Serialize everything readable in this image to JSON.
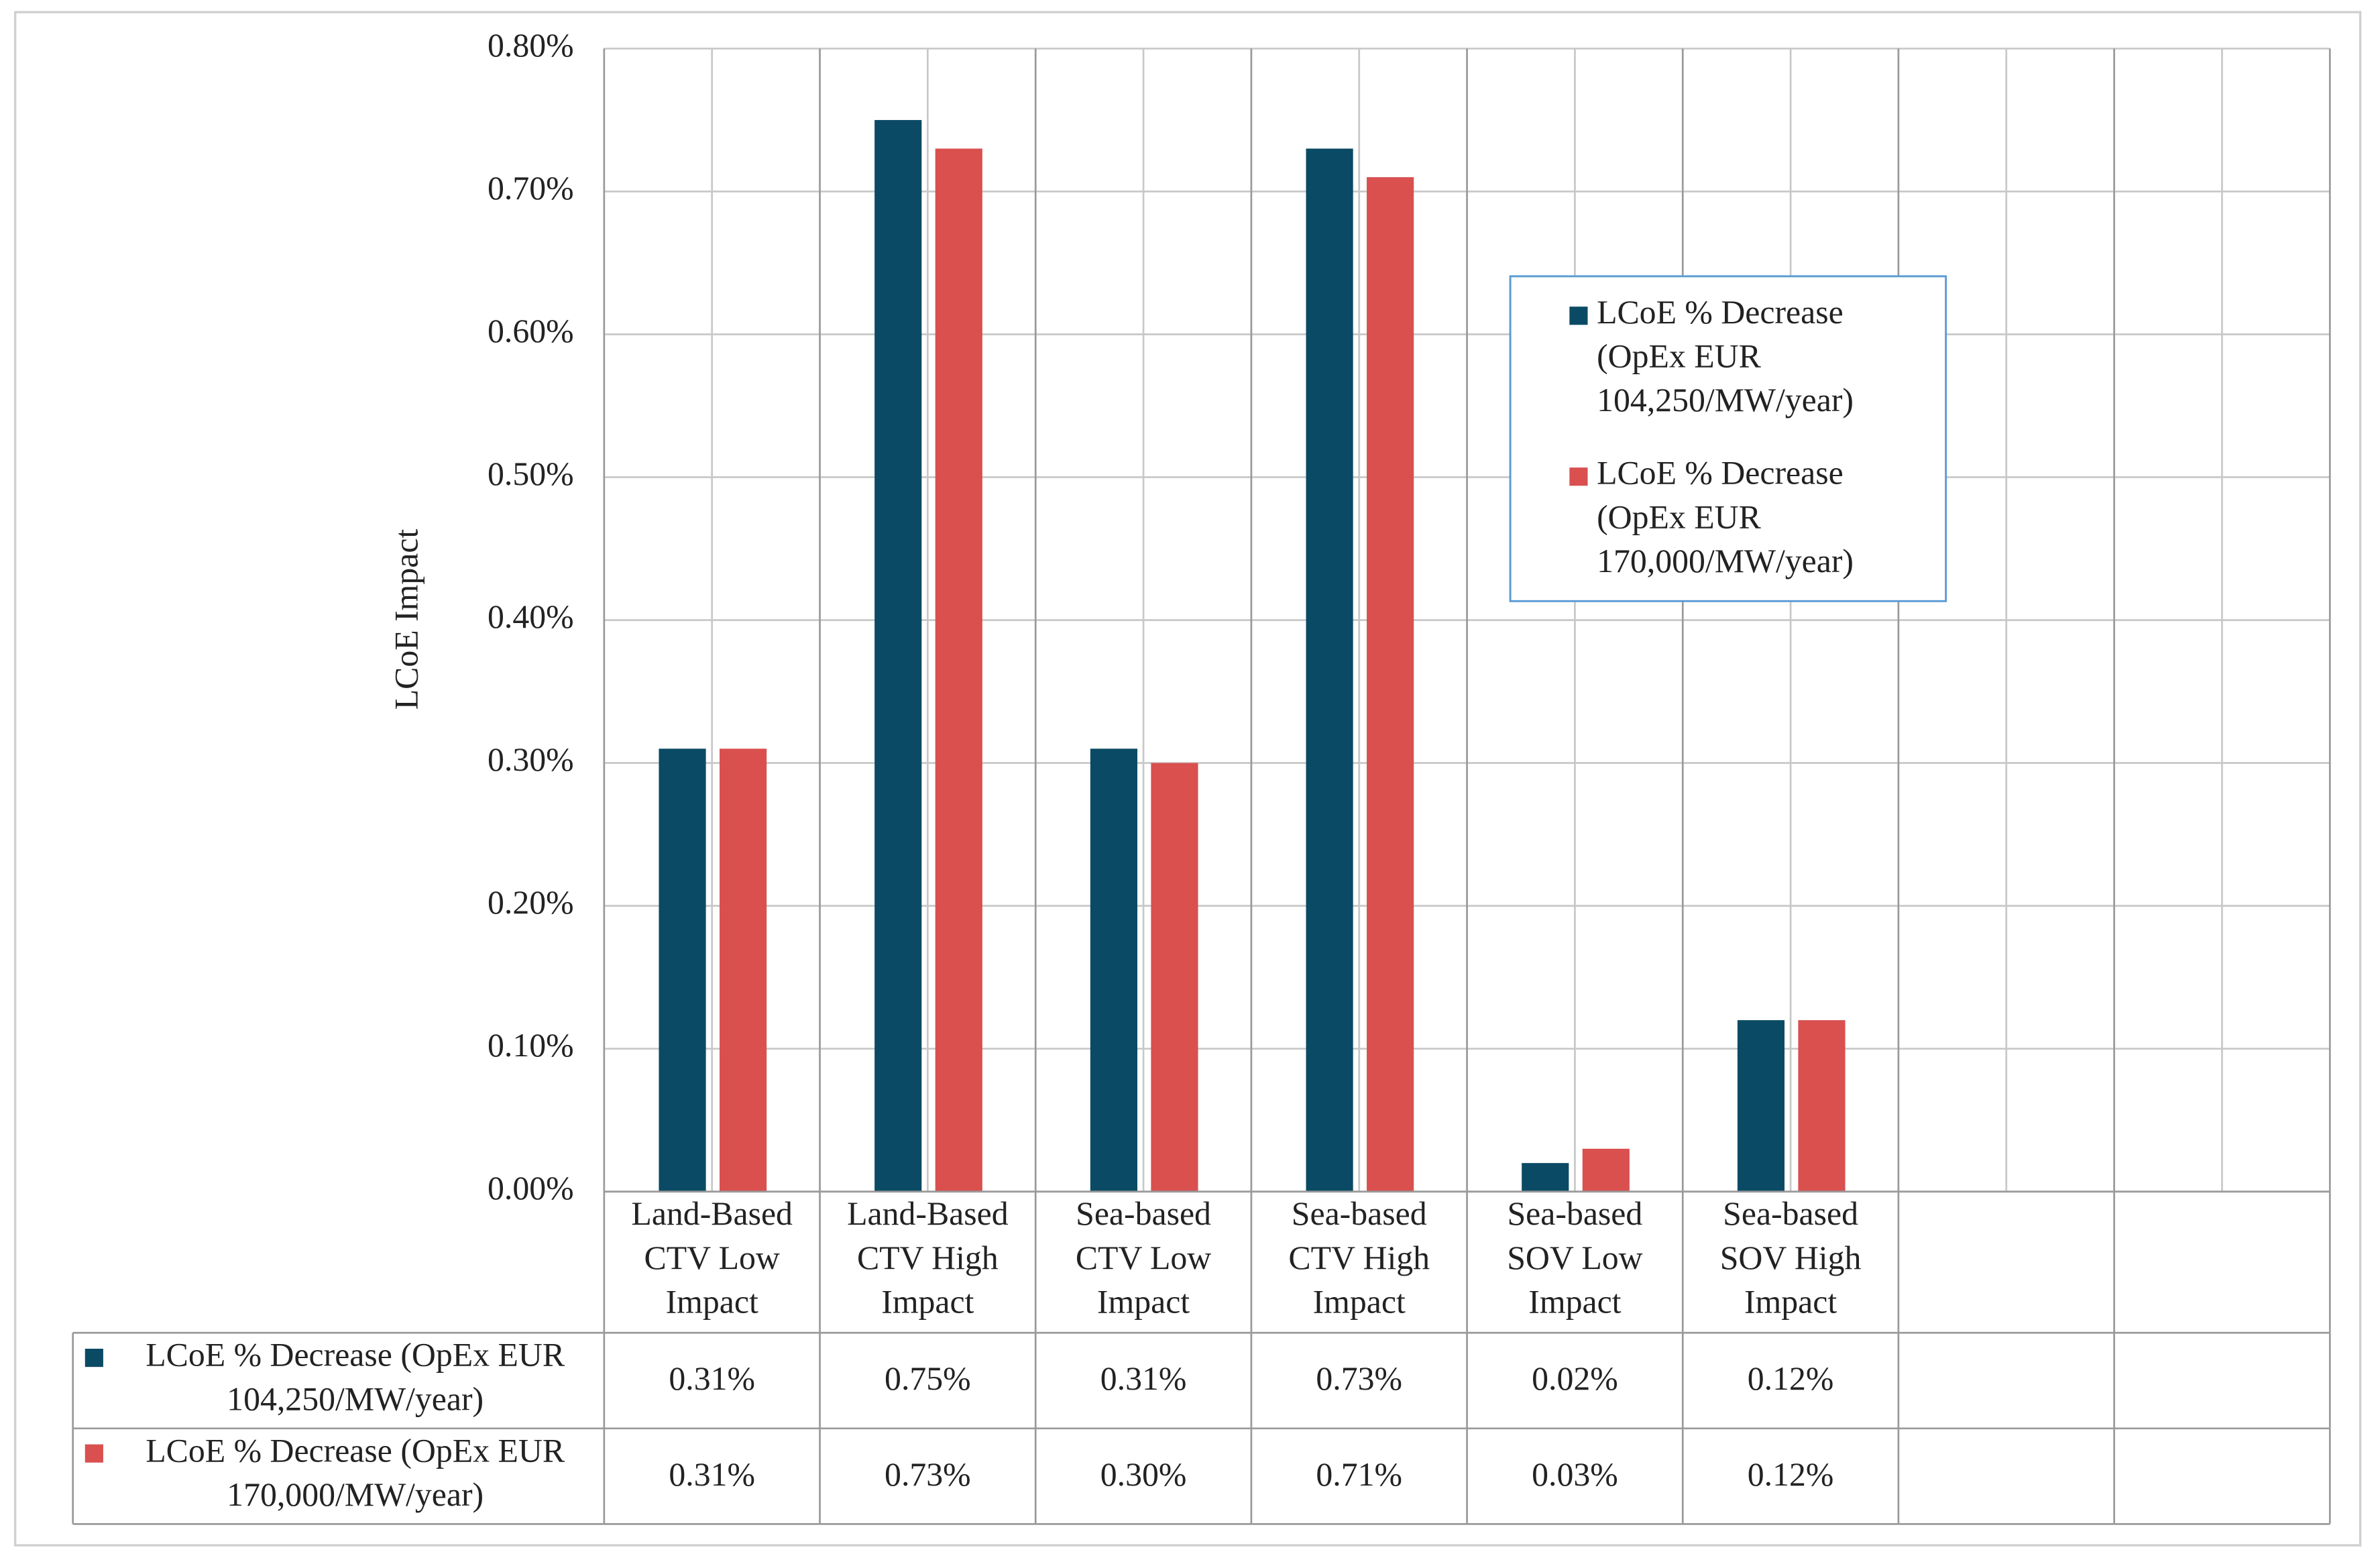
{
  "chart_data": {
    "type": "bar",
    "y_label": "LCoE Impact",
    "categories": [
      "Land-Based CTV Low Impact",
      "Land-Based CTV High Impact",
      "Sea-based CTV Low Impact",
      "Sea-based CTV High Impact",
      "Sea-based SOV Low Impact",
      "Sea-based SOV High Impact",
      null,
      null
    ],
    "series": [
      {
        "name": "LCoE % Decrease (OpEx EUR 104,250/MW/year)",
        "color": "#0b4a64",
        "values": [
          0.31,
          0.75,
          0.31,
          0.73,
          0.02,
          0.12,
          null,
          null
        ],
        "value_labels": [
          "0.31%",
          "0.75%",
          "0.31%",
          "0.73%",
          "0.02%",
          "0.12%",
          null,
          null
        ]
      },
      {
        "name": "LCoE % Decrease (OpEx EUR 170,000/MW/year)",
        "color": "#d9504f",
        "values": [
          0.31,
          0.73,
          0.3,
          0.71,
          0.03,
          0.12,
          null,
          null
        ],
        "value_labels": [
          "0.31%",
          "0.73%",
          "0.30%",
          "0.71%",
          "0.03%",
          "0.12%",
          null,
          null
        ]
      }
    ],
    "ylim": [
      0,
      0.8
    ],
    "yticks": [
      {
        "value": 0,
        "label": "0.00%"
      },
      {
        "value": 0.1,
        "label": "0.10%"
      },
      {
        "value": 0.2,
        "label": "0.20%"
      },
      {
        "value": 0.3,
        "label": "0.30%"
      },
      {
        "value": 0.4,
        "label": "0.40%"
      },
      {
        "value": 0.5,
        "label": "0.50%"
      },
      {
        "value": 0.6,
        "label": "0.60%"
      },
      {
        "value": 0.7,
        "label": "0.70%"
      },
      {
        "value": 0.8,
        "label": "0.80%"
      }
    ],
    "grid": true,
    "legend": "upper right",
    "data_table": true
  }
}
